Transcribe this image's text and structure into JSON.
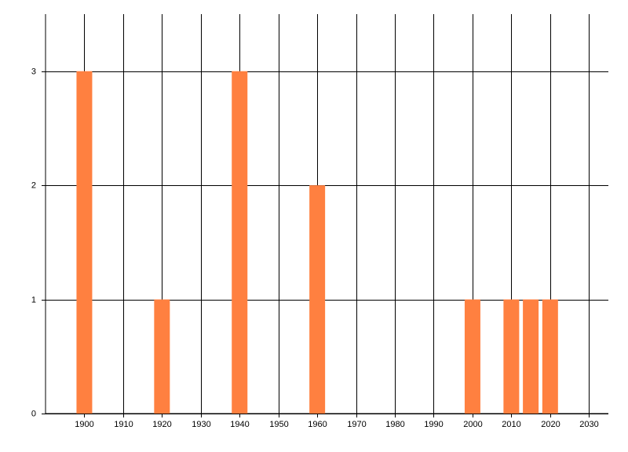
{
  "chart_data": {
    "type": "bar",
    "x": [
      1900,
      1920,
      1940,
      1960,
      2000,
      2010,
      2015,
      2020
    ],
    "values": [
      3,
      1,
      3,
      2,
      1,
      1,
      1,
      1
    ],
    "color": "#ff8040",
    "xlim": [
      1890,
      2035
    ],
    "xticks": [
      1900,
      1910,
      1920,
      1930,
      1940,
      1950,
      1960,
      1970,
      1980,
      1990,
      2000,
      2010,
      2020,
      2030
    ],
    "ylim": [
      0,
      3.5
    ],
    "yticks": [
      0,
      1,
      2,
      3
    ],
    "grid": true
  }
}
